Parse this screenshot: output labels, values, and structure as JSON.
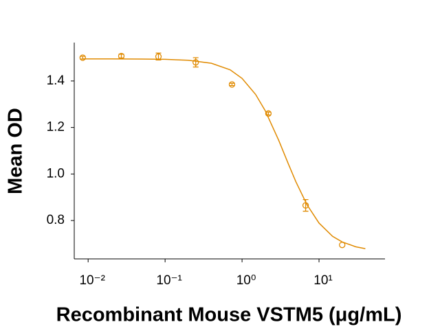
{
  "chart_data": {
    "type": "scatter",
    "xlabel": "Recombinant Mouse VSTM5 (μg/mL)",
    "ylabel": "Mean OD",
    "x": [
      0.0085,
      0.027,
      0.082,
      0.25,
      0.74,
      2.2,
      6.7,
      20
    ],
    "series": [
      {
        "color": "#e08a00",
        "values": [
          1.5,
          1.507,
          1.505,
          1.48,
          1.385,
          1.26,
          0.865,
          0.695
        ],
        "errors": [
          0.006,
          0.008,
          0.015,
          0.02,
          0.005,
          0.006,
          0.025,
          0
        ]
      }
    ],
    "curve": {
      "color": "#e08a00",
      "x": [
        0.0085,
        0.02,
        0.05,
        0.1,
        0.2,
        0.4,
        0.7,
        1,
        1.5,
        2,
        3,
        4,
        5,
        7,
        10,
        15,
        20,
        30,
        40
      ],
      "values": [
        1.495,
        1.495,
        1.494,
        1.493,
        1.489,
        1.476,
        1.448,
        1.411,
        1.342,
        1.272,
        1.144,
        1.043,
        0.967,
        0.867,
        0.789,
        0.732,
        0.708,
        0.687,
        0.679
      ]
    },
    "xscale": "log",
    "xlim": [
      0.0066,
      72
    ],
    "ylim": [
      0.635,
      1.565
    ],
    "xticks": [
      {
        "value": 0.01,
        "label": "10⁻²"
      },
      {
        "value": 0.1,
        "label": "10⁻¹"
      },
      {
        "value": 1,
        "label": "10⁰"
      },
      {
        "value": 10,
        "label": "10¹"
      }
    ],
    "yticks": [
      0.8,
      {
        "value": 1,
        "label": "1.0"
      },
      1.2,
      1.4
    ],
    "marker": "open-circle"
  }
}
